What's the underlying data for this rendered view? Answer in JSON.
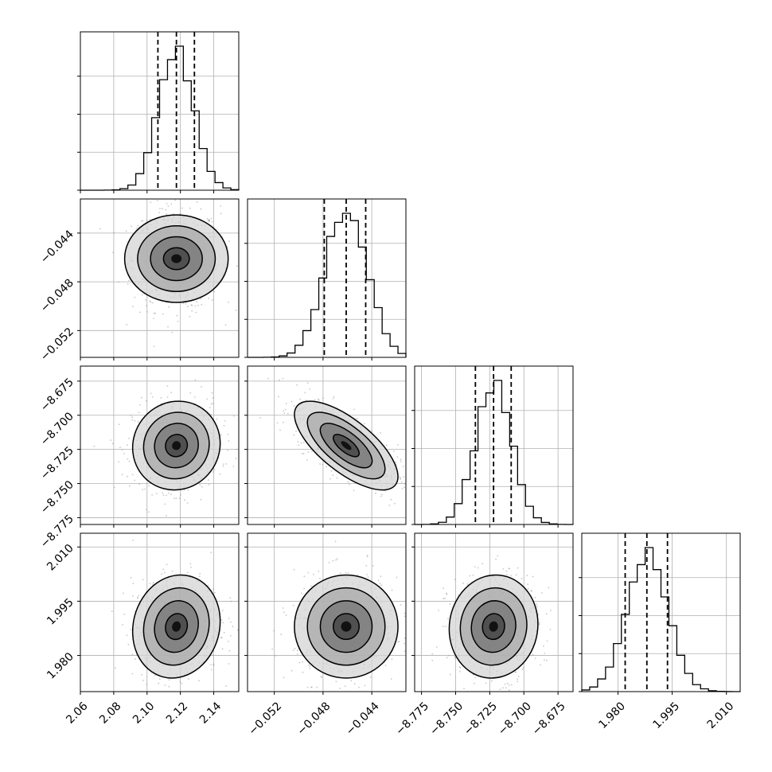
{
  "chart_data": {
    "type": "corner",
    "parameters": [
      {
        "range": [
          2.06,
          2.155
        ],
        "ticks": [
          2.06,
          2.08,
          2.1,
          2.12,
          2.14
        ],
        "tick_labels": [
          "2.06",
          "2.08",
          "2.10",
          "2.12",
          "2.14"
        ],
        "quantiles": [
          2.1065,
          2.1176,
          2.1284
        ],
        "mean": 2.1176,
        "sigma": 0.0105
      },
      {
        "range": [
          -0.0542,
          -0.0412
        ],
        "ticks": [
          -0.052,
          -0.048,
          -0.044
        ],
        "tick_labels": [
          "−0.052",
          "−0.048",
          "−0.044"
        ],
        "quantiles": [
          -0.0479,
          -0.0461,
          -0.0445
        ],
        "mean": -0.0461,
        "sigma": 0.0017
      },
      {
        "range": [
          -8.78,
          -8.664
        ],
        "ticks": [
          -8.775,
          -8.75,
          -8.725,
          -8.7,
          -8.675
        ],
        "tick_labels": [
          "−8.775",
          "−8.750",
          "−8.725",
          "−8.700",
          "−8.675"
        ],
        "quantiles": [
          -8.7355,
          -8.7222,
          -8.7093
        ],
        "mean": -8.7222,
        "sigma": 0.013
      },
      {
        "range": [
          1.97,
          2.0138
        ],
        "ticks": [
          1.98,
          1.995,
          2.01
        ],
        "tick_labels": [
          "1.980",
          "1.995",
          "2.010"
        ],
        "quantiles": [
          1.982,
          1.988,
          1.9937
        ],
        "mean": 1.988,
        "sigma": 0.0057
      }
    ],
    "correlations": [
      [
        1,
        0,
        0.05,
        0.1
      ],
      [
        0,
        1,
        -0.7,
        0
      ],
      [
        0.05,
        -0.7,
        1,
        0.05
      ],
      [
        0.1,
        0,
        0.05,
        1
      ]
    ],
    "contour_levels_sigma": [
      0.5,
      1.0,
      1.5,
      2.0
    ],
    "grid": true,
    "histogram_bins": 20,
    "quantile_line_style": "dashed"
  }
}
